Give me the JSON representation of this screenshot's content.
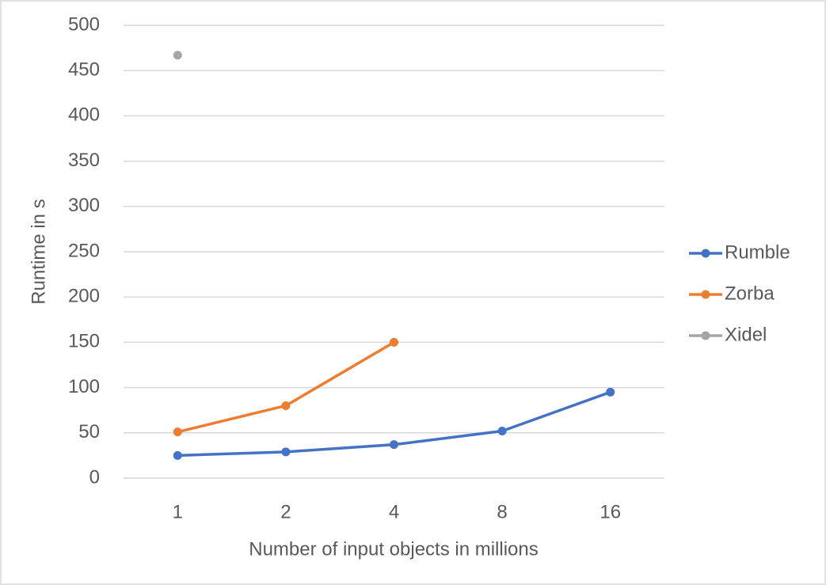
{
  "chart_data": {
    "type": "line",
    "x_label": "Number of input objects in millions",
    "y_label": "Runtime in s",
    "categories": [
      "1",
      "2",
      "4",
      "8",
      "16"
    ],
    "series": [
      {
        "name": "Rumble",
        "color": "#4472c4",
        "values": [
          25,
          29,
          37,
          52,
          95
        ]
      },
      {
        "name": "Zorba",
        "color": "#ed7d31",
        "values": [
          51,
          80,
          150,
          null,
          null
        ]
      },
      {
        "name": "Xidel",
        "color": "#a5a5a5",
        "values": [
          467,
          null,
          null,
          null,
          null
        ]
      }
    ],
    "ylim": [
      0,
      500
    ],
    "yticks": [
      0,
      50,
      100,
      150,
      200,
      250,
      300,
      350,
      400,
      450,
      500
    ],
    "grid": true,
    "legend": "right"
  }
}
